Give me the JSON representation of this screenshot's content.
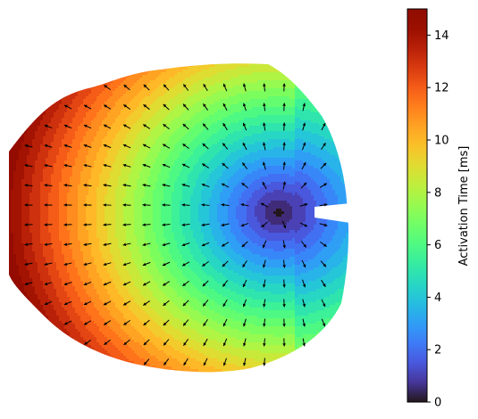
{
  "chart_data": {
    "type": "heatmap",
    "title": "",
    "xlabel": "",
    "ylabel": "",
    "axes_visible": false,
    "grid": false,
    "map_description_values": {
      "activation_range_ms": [
        0,
        15
      ],
      "earliest_activation_ms": 0,
      "latest_activation_ms": 15
    },
    "colorbar": {
      "label": "Activation Time [ms]",
      "colormap": "turbo",
      "range": [
        0,
        15
      ],
      "ticks": [
        0,
        2,
        4,
        6,
        8,
        10,
        12,
        14
      ],
      "tick_labels": [
        "0",
        "2",
        "4",
        "6",
        "8",
        "10",
        "12",
        "14"
      ],
      "placement": "right"
    },
    "overlay": "activation direction vector arrows",
    "colors": {
      "arrow": "#000000",
      "colorbar_frame": "#000000"
    }
  }
}
